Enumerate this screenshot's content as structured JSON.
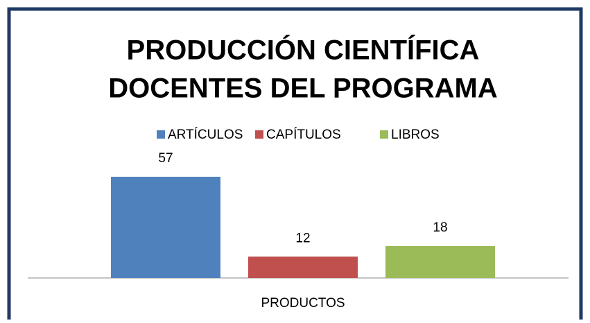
{
  "chart_data": {
    "type": "bar",
    "title": [
      "PRODUCCIÓN CIENTÍFICA",
      "DOCENTES DEL PROGRAMA"
    ],
    "categories": [
      "PRODUCTOS"
    ],
    "series": [
      {
        "name": "ARTÍCULOS",
        "color": "#4f81bd",
        "values": [
          57
        ]
      },
      {
        "name": "CAPÍTULOS",
        "color": "#c0504d",
        "values": [
          12
        ]
      },
      {
        "name": "LIBROS",
        "color": "#9bbb59",
        "values": [
          18
        ]
      }
    ],
    "legend": "top"
  }
}
